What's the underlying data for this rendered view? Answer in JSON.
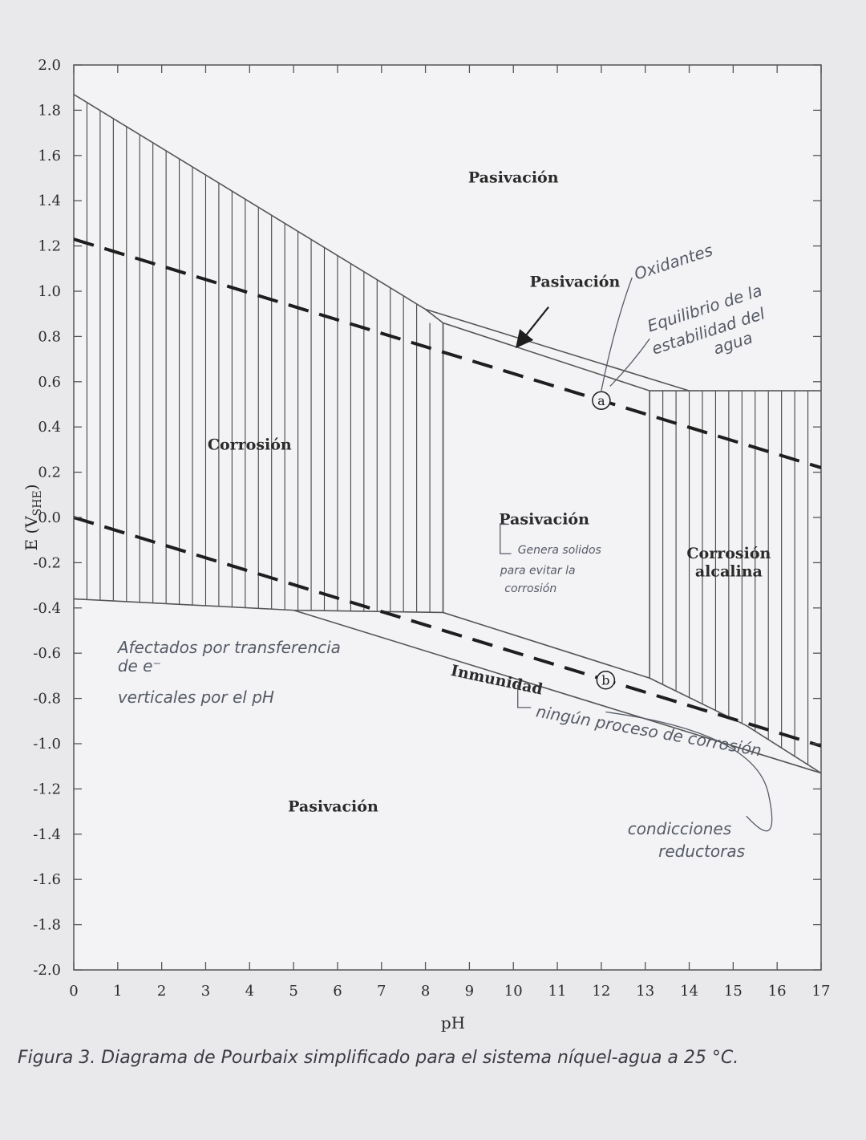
{
  "chart_data": {
    "type": "diagram",
    "xlabel": "pH",
    "ylabel": "E (V",
    "ylabel_sub": "SHE",
    "ylabel_close": ")",
    "xlim": [
      0,
      17
    ],
    "ylim": [
      -2.0,
      2.0
    ],
    "x_ticks": [
      "0",
      "1",
      "2",
      "3",
      "4",
      "5",
      "6",
      "7",
      "8",
      "9",
      "10",
      "11",
      "12",
      "13",
      "14",
      "15",
      "16",
      "17"
    ],
    "y_ticks": [
      "2.0",
      "1.8",
      "1.6",
      "1.4",
      "1.2",
      "1.0",
      "0.8",
      "0.6",
      "0.4",
      "0.2",
      "0.0",
      "-0.2",
      "-0.4",
      "-0.6",
      "-0.8",
      "-1.0",
      "-1.2",
      "-1.4",
      "-1.6",
      "-1.8",
      "-2.0"
    ],
    "boundaries": [
      {
        "points": [
          [
            0,
            1.87
          ],
          [
            8.0,
            0.92
          ],
          [
            14.0,
            0.56
          ],
          [
            17.0,
            0.56
          ]
        ]
      },
      {
        "points": [
          [
            8.0,
            0.92
          ],
          [
            8.4,
            0.86
          ],
          [
            13.1,
            0.56
          ],
          [
            14.0,
            0.56
          ]
        ]
      },
      {
        "points": [
          [
            0,
            -0.36
          ],
          [
            5.0,
            -0.41
          ],
          [
            8.4,
            -0.42
          ],
          [
            13.1,
            -0.71
          ],
          [
            15.3,
            -0.92
          ],
          [
            17.0,
            -1.13
          ]
        ]
      },
      {
        "points": [
          [
            5.0,
            -0.41
          ],
          [
            17.0,
            -1.13
          ]
        ]
      },
      {
        "points": [
          [
            8.4,
            0.86
          ],
          [
            8.4,
            -0.42
          ]
        ]
      },
      {
        "points": [
          [
            13.1,
            0.56
          ],
          [
            13.1,
            -0.71
          ]
        ]
      }
    ],
    "water_lines": [
      {
        "label": "a",
        "points": [
          [
            0,
            1.23
          ],
          [
            17,
            0.22
          ]
        ],
        "marker_x": 12.0
      },
      {
        "label": "b",
        "points": [
          [
            0,
            0.0
          ],
          [
            17,
            -1.01
          ]
        ],
        "marker_x": 12.1
      }
    ],
    "regions": [
      {
        "label": "Pasivación",
        "x": 10.0,
        "y": 1.48
      },
      {
        "label": "Pasivación",
        "x": 11.4,
        "y": 1.02
      },
      {
        "label": "Corrosión",
        "x": 4.0,
        "y": 0.3
      },
      {
        "label": "Pasivación",
        "x": 10.7,
        "y": -0.03
      },
      {
        "label": "Corrosión",
        "x": 14.9,
        "y": -0.18
      },
      {
        "label": "alcalina",
        "x": 14.9,
        "y": -0.26
      },
      {
        "label": "Inmunidad",
        "x": 9.6,
        "y": -0.74
      },
      {
        "label": "Pasivación",
        "x": 5.9,
        "y": -1.3
      }
    ],
    "annotations": [
      {
        "text": "Oxidantes",
        "x": 12.8,
        "y": 1.05
      },
      {
        "text": "Equilibrio de la",
        "x": 13.1,
        "y": 0.82
      },
      {
        "text": "estabilidad del",
        "x": 13.2,
        "y": 0.72
      },
      {
        "text": "agua",
        "x": 14.6,
        "y": 0.72
      },
      {
        "text": "Genera solidos",
        "x": 10.1,
        "y": -0.16
      },
      {
        "text": "para evitar la",
        "x": 9.7,
        "y": -0.25
      },
      {
        "text": "corrosión",
        "x": 9.8,
        "y": -0.33
      },
      {
        "text": "Afectados por transferencia",
        "x": 1.0,
        "y": -0.6
      },
      {
        "text": "de e⁻",
        "x": 1.0,
        "y": -0.68
      },
      {
        "text": "verticales por el pH",
        "x": 1.0,
        "y": -0.82
      },
      {
        "text": "ningún proceso de corrosión",
        "x": 10.5,
        "y": -0.88
      },
      {
        "text": "condicciones",
        "x": 12.6,
        "y": -1.4
      },
      {
        "text": "reductoras",
        "x": 13.3,
        "y": -1.5
      }
    ]
  },
  "caption": "Figura 3. Diagrama de Pourbaix simplificado para el sistema níquel-agua a 25 °C.",
  "colors": {
    "background": "#e9e8ea",
    "plot_area": "#f3f3f5",
    "line": "#555555",
    "dashed": "#1e1e1e",
    "pen": "#555a66"
  }
}
